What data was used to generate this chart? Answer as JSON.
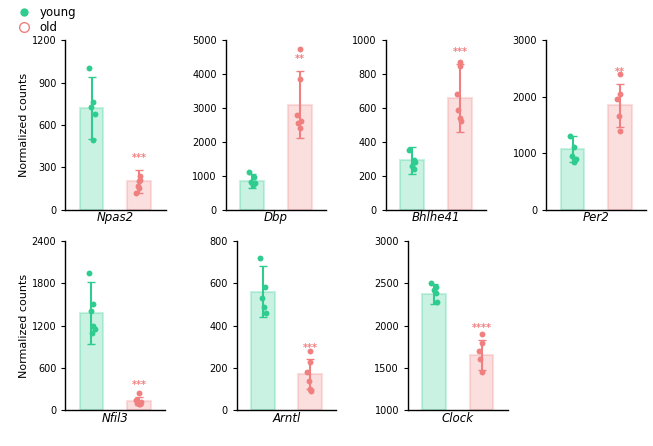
{
  "subplots": [
    {
      "gene": "Npas2",
      "young_mean": 720,
      "young_sd": 220,
      "old_mean": 200,
      "old_sd": 80,
      "young_points": [
        1000,
        760,
        730,
        490,
        680
      ],
      "old_points": [
        240,
        200,
        120,
        170,
        150,
        210
      ],
      "ylim": [
        0,
        1200
      ],
      "yticks": [
        0,
        300,
        600,
        900,
        1200
      ],
      "sig": "***",
      "sig_on": "old"
    },
    {
      "gene": "Dbp",
      "young_mean": 850,
      "young_sd": 200,
      "old_mean": 3100,
      "old_sd": 1000,
      "young_points": [
        1100,
        950,
        820,
        720,
        780
      ],
      "old_points": [
        4750,
        3850,
        2800,
        2550,
        2400,
        2600
      ],
      "ylim": [
        0,
        5000
      ],
      "yticks": [
        0,
        1000,
        2000,
        3000,
        4000,
        5000
      ],
      "sig": "**",
      "sig_on": "old"
    },
    {
      "gene": "Bhlhe41",
      "young_mean": 290,
      "young_sd": 80,
      "old_mean": 660,
      "old_sd": 200,
      "young_points": [
        350,
        290,
        260,
        240,
        280
      ],
      "old_points": [
        870,
        850,
        680,
        590,
        540,
        520
      ],
      "ylim": [
        0,
        1000
      ],
      "yticks": [
        0,
        200,
        400,
        600,
        800,
        1000
      ],
      "sig": "***",
      "sig_on": "old"
    },
    {
      "gene": "Per2",
      "young_mean": 1080,
      "young_sd": 230,
      "old_mean": 1850,
      "old_sd": 380,
      "young_points": [
        1300,
        1100,
        950,
        850,
        900
      ],
      "old_points": [
        2400,
        2050,
        1950,
        1650,
        1400
      ],
      "ylim": [
        0,
        3000
      ],
      "yticks": [
        0,
        1000,
        2000,
        3000
      ],
      "sig": "**",
      "sig_on": "old"
    }
  ],
  "subplots_row2": [
    {
      "gene": "Nfil3",
      "young_mean": 1380,
      "young_sd": 440,
      "old_mean": 130,
      "old_sd": 60,
      "young_points": [
        1950,
        1500,
        1400,
        1200,
        1150,
        1100
      ],
      "old_points": [
        250,
        140,
        100,
        90,
        85,
        120
      ],
      "ylim": [
        0,
        2400
      ],
      "yticks": [
        0,
        600,
        1200,
        1800,
        2400
      ],
      "sig": "***",
      "sig_on": "old"
    },
    {
      "gene": "Arntl",
      "young_mean": 560,
      "young_sd": 120,
      "old_mean": 170,
      "old_sd": 70,
      "young_points": [
        720,
        580,
        530,
        490,
        460
      ],
      "old_points": [
        280,
        230,
        180,
        140,
        100,
        90
      ],
      "ylim": [
        0,
        800
      ],
      "yticks": [
        0,
        200,
        400,
        600,
        800
      ],
      "sig": "***",
      "sig_on": "old"
    },
    {
      "gene": "Clock",
      "young_mean": 2370,
      "young_sd": 120,
      "old_mean": 1650,
      "old_sd": 180,
      "young_points": [
        2500,
        2450,
        2420,
        2380,
        2280
      ],
      "old_points": [
        1900,
        1800,
        1700,
        1600,
        1450
      ],
      "ylim": [
        1000,
        3000
      ],
      "yticks": [
        1000,
        1500,
        2000,
        2500,
        3000
      ],
      "sig": "****",
      "sig_on": "old"
    }
  ],
  "young_color": "#2ecc8e",
  "old_color": "#f08080",
  "bar_alpha": 0.25,
  "point_size": 18,
  "ylabel": "Normalized counts",
  "legend_young": "young",
  "legend_old": "old",
  "fig_width": 6.53,
  "fig_height": 4.46,
  "dpi": 100
}
